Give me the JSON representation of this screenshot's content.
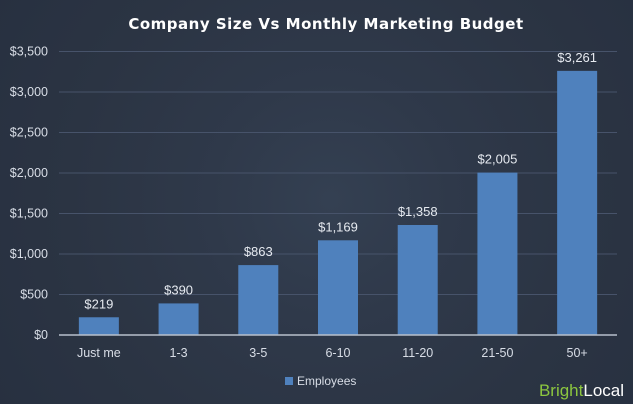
{
  "chart_data": {
    "type": "bar",
    "title": "Company Size Vs Monthly Marketing Budget",
    "xlabel": "",
    "ylabel": "",
    "categories": [
      "Just me",
      "1-3",
      "3-5",
      "6-10",
      "11-20",
      "21-50",
      "50+"
    ],
    "series": [
      {
        "name": "Employees",
        "values": [
          219,
          390,
          863,
          1169,
          1358,
          2005,
          3261
        ],
        "color": "#4f81bd"
      }
    ],
    "data_labels": [
      "$219",
      "$390",
      "$863",
      "$1,169",
      "$1,358",
      "$2,005",
      "$3,261"
    ],
    "ylim": [
      0,
      3500
    ],
    "yticks": [
      0,
      500,
      1000,
      1500,
      2000,
      2500,
      3000,
      3500
    ],
    "ytick_labels": [
      "$0",
      "$500",
      "$1,000",
      "$1,500",
      "$2,000",
      "$2,500",
      "$3,000",
      "$3,500"
    ],
    "grid": true,
    "legend": "bottom"
  },
  "logo": {
    "part1": "Bright",
    "part2": "Local",
    "color1": "#8cc63f",
    "color2": "#ffffff"
  }
}
